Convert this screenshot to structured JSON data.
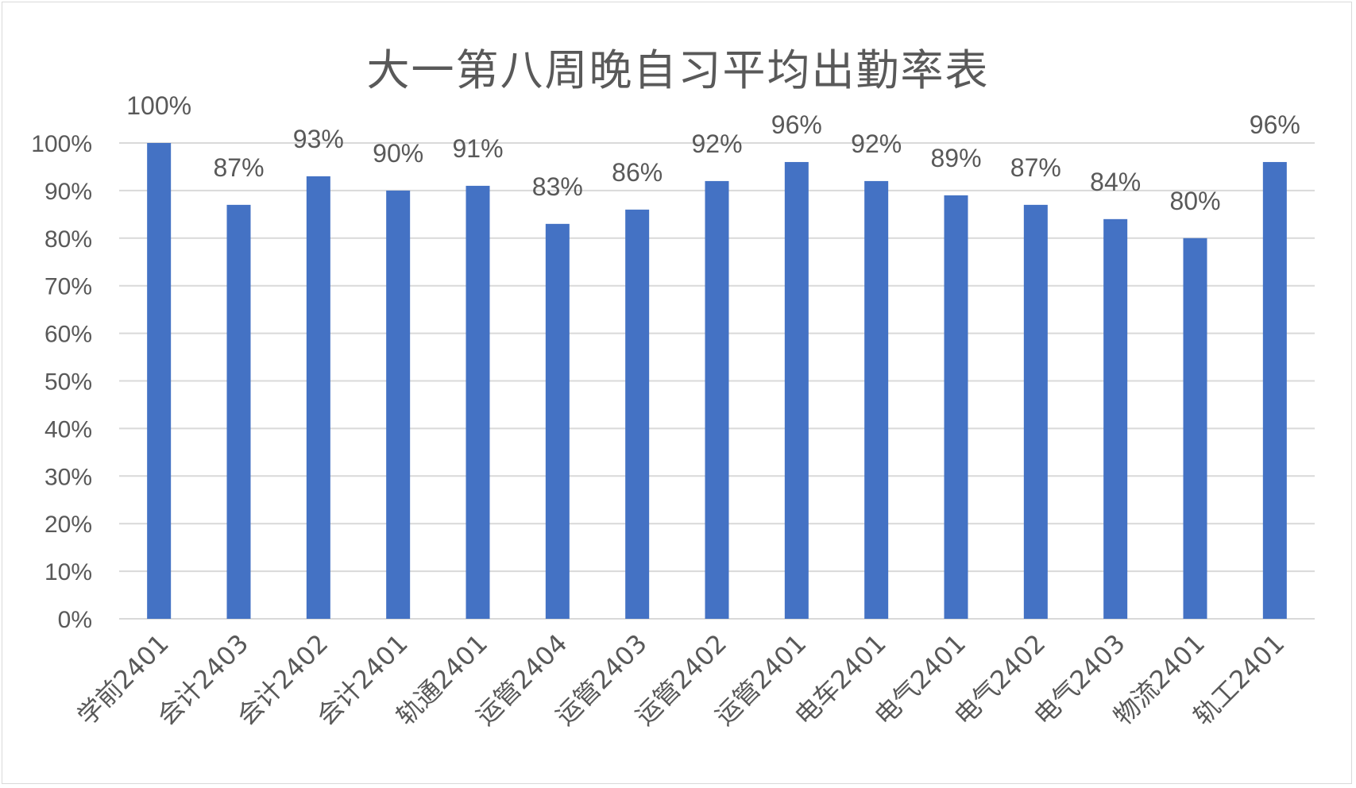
{
  "chart_data": {
    "type": "bar",
    "title": "大一第八周晚自习平均出勤率表",
    "categories": [
      "学前2401",
      "会计2403",
      "会计2402",
      "会计2401",
      "轨通2401",
      "运管2404",
      "运管2403",
      "运管2402",
      "运管2401",
      "电车2401",
      "电气2401",
      "电气2402",
      "电气2403",
      "物流2401",
      "轨工2401"
    ],
    "series": [
      {
        "values": [
          100,
          87,
          93,
          90,
          91,
          83,
          86,
          92,
          96,
          92,
          89,
          87,
          84,
          80,
          96
        ]
      }
    ],
    "data_labels": [
      "100%",
      "87%",
      "93%",
      "90%",
      "91%",
      "83%",
      "86%",
      "92%",
      "96%",
      "92%",
      "89%",
      "87%",
      "84%",
      "80%",
      "96%"
    ],
    "y_ticks": [
      "0%",
      "10%",
      "20%",
      "30%",
      "40%",
      "50%",
      "60%",
      "70%",
      "80%",
      "90%",
      "100%"
    ],
    "ylim": [
      0,
      100
    ],
    "xlabel": "",
    "ylabel": "",
    "grid": true,
    "legend": "none",
    "bar_color": "#4472c4",
    "grid_color": "#d9d9d9",
    "text_color": "#595959"
  }
}
